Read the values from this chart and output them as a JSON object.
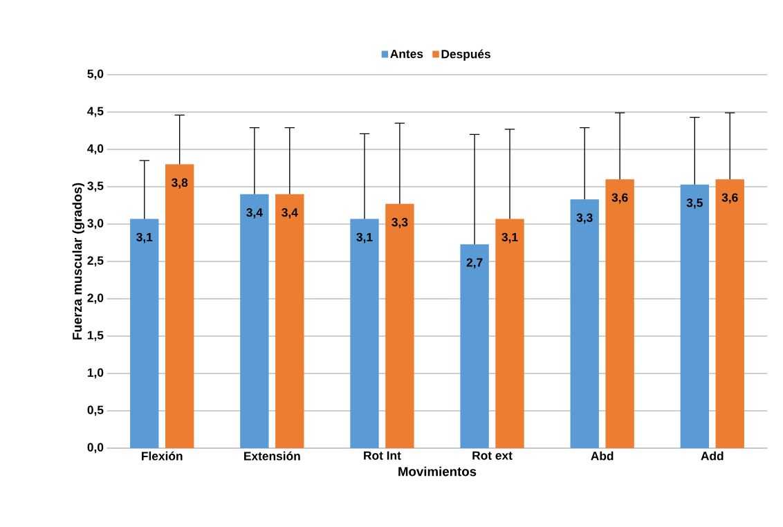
{
  "chart_data": {
    "type": "bar",
    "xlabel": "Movimientos",
    "ylabel": "Fuerza muscular (grados)",
    "categories": [
      "Flexión",
      "Extensión",
      "Rot Int",
      "Rot ext",
      "Abd",
      "Add"
    ],
    "series": [
      {
        "name": "Antes",
        "color": "#5b9bd5",
        "values": [
          3.07,
          3.4,
          3.07,
          2.73,
          3.33,
          3.53
        ],
        "errors": [
          [
            3.07,
            3.85
          ],
          [
            3.4,
            4.29
          ],
          [
            3.07,
            4.21
          ],
          [
            2.73,
            4.2
          ],
          [
            3.33,
            4.29
          ],
          [
            3.53,
            4.43
          ]
        ],
        "value_labels": [
          "3,1",
          "3,4",
          "3,1",
          "2,7",
          "3,3",
          "3,5"
        ]
      },
      {
        "name": "Después",
        "color": "#ed7d31",
        "values": [
          3.8,
          3.4,
          3.27,
          3.07,
          3.6,
          3.6
        ],
        "errors": [
          [
            3.8,
            4.46
          ],
          [
            3.4,
            4.29
          ],
          [
            3.27,
            4.35
          ],
          [
            3.07,
            4.27
          ],
          [
            3.6,
            4.49
          ],
          [
            3.6,
            4.49
          ]
        ],
        "value_labels": [
          "3,8",
          "3,4",
          "3,3",
          "3,1",
          "3,6",
          "3,6"
        ]
      }
    ],
    "ylim": [
      0,
      5
    ],
    "yticks": [
      {
        "value": 0,
        "label": "0,0"
      },
      {
        "value": 0.5,
        "label": "0,5"
      },
      {
        "value": 1,
        "label": "1,0"
      },
      {
        "value": 1.5,
        "label": "1,5"
      },
      {
        "value": 2,
        "label": "2,0"
      },
      {
        "value": 2.5,
        "label": "2,5"
      },
      {
        "value": 3,
        "label": "3,0"
      },
      {
        "value": 3.5,
        "label": "3,5"
      },
      {
        "value": 4,
        "label": "4,0"
      },
      {
        "value": 4.5,
        "label": "4,5"
      },
      {
        "value": 5,
        "label": "5,0"
      }
    ],
    "grid": "y",
    "legend": "top"
  }
}
